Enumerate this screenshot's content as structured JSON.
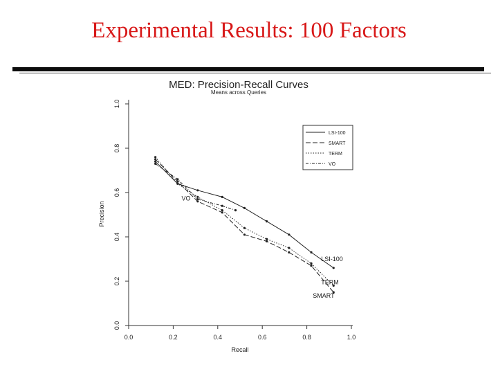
{
  "slide": {
    "title": "Experimental Results: 100 Factors"
  },
  "chart_data": {
    "type": "line",
    "title": "MED: Precision-Recall Curves",
    "subtitle": "Means across Queries",
    "xlabel": "Recall",
    "ylabel": "Precision",
    "xlim": [
      0.0,
      1.0
    ],
    "ylim": [
      0.0,
      1.0
    ],
    "xticks": [
      "0.0",
      "0.2",
      "0.4",
      "0.6",
      "0.8",
      "1.0"
    ],
    "yticks": [
      "0.0",
      "0.2",
      "0.4",
      "0.6",
      "0.8",
      "1.0"
    ],
    "grid": false,
    "legend": {
      "position": "top-right",
      "entries": [
        "LSI-100",
        "SMART",
        "TERM",
        "VO"
      ]
    },
    "series": [
      {
        "name": "LSI-100",
        "dash": "",
        "label": "LSI-100",
        "x": [
          0.12,
          0.22,
          0.31,
          0.42,
          0.52,
          0.62,
          0.72,
          0.82,
          0.92
        ],
        "y": [
          0.74,
          0.64,
          0.61,
          0.58,
          0.53,
          0.47,
          0.41,
          0.33,
          0.26
        ]
      },
      {
        "name": "SMART",
        "dash": "7,3",
        "label": "SMART",
        "x": [
          0.12,
          0.22,
          0.31,
          0.42,
          0.52,
          0.62,
          0.72,
          0.82,
          0.92
        ],
        "y": [
          0.75,
          0.65,
          0.56,
          0.51,
          0.41,
          0.38,
          0.33,
          0.27,
          0.15
        ]
      },
      {
        "name": "TERM",
        "dash": "1.5,2",
        "label": "TERM",
        "x": [
          0.12,
          0.22,
          0.31,
          0.42,
          0.52,
          0.62,
          0.72,
          0.82,
          0.92
        ],
        "y": [
          0.76,
          0.64,
          0.58,
          0.52,
          0.44,
          0.39,
          0.35,
          0.28,
          0.18
        ]
      },
      {
        "name": "VO",
        "dash": "4,2,1,2",
        "label": "VO",
        "x": [
          0.12,
          0.22,
          0.31,
          0.42,
          0.48
        ],
        "y": [
          0.73,
          0.66,
          0.57,
          0.54,
          0.52
        ]
      }
    ]
  }
}
